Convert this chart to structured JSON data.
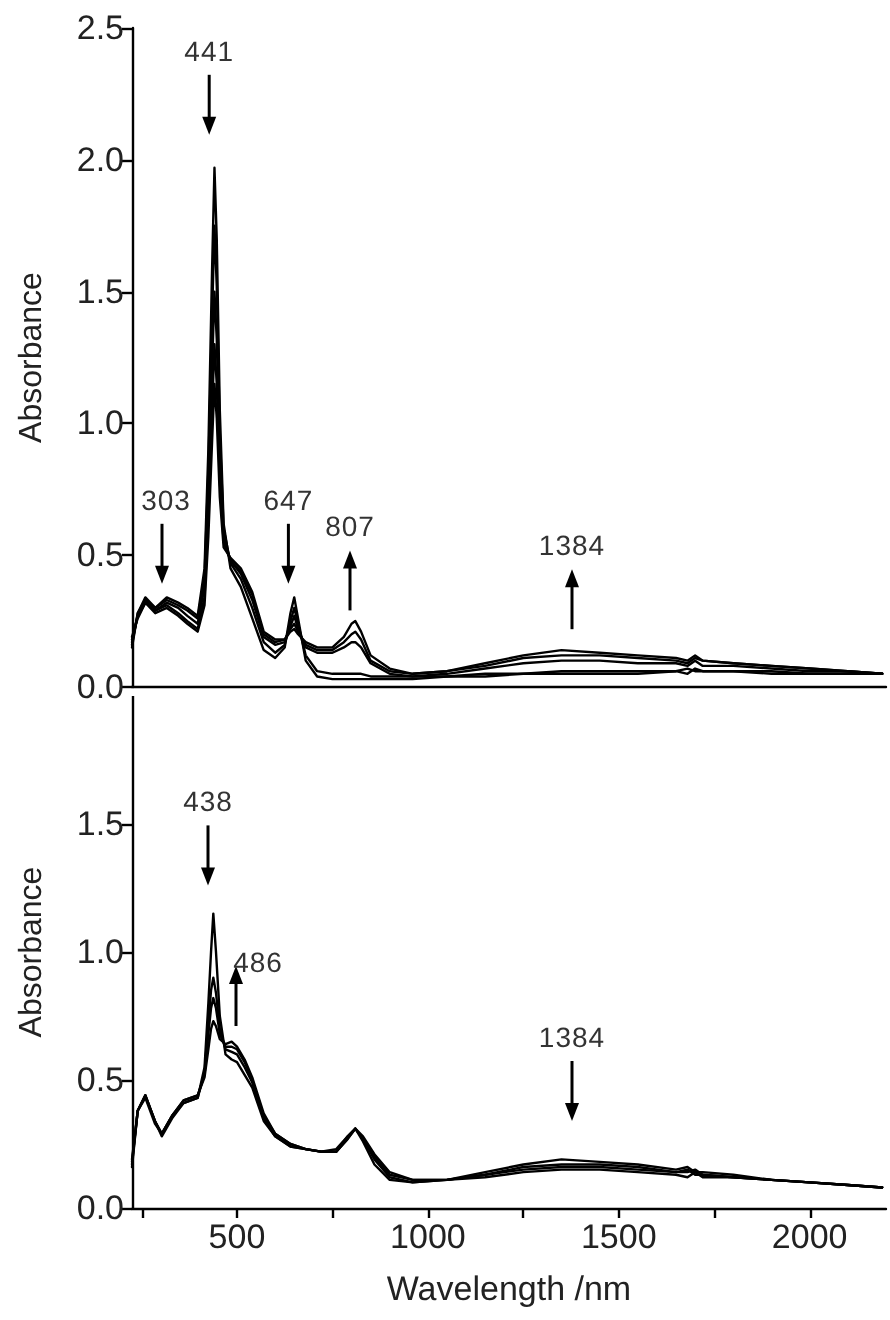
{
  "chart_data": [
    {
      "type": "line",
      "ylabel": "Absorbance",
      "x": [
        225,
        240,
        260,
        286,
        316,
        346,
        370,
        397,
        415,
        425,
        435,
        441,
        447,
        455,
        465,
        483,
        510,
        540,
        570,
        600,
        625,
        640,
        650,
        660,
        680,
        710,
        750,
        780,
        800,
        810,
        825,
        850,
        900,
        960,
        1050,
        1150,
        1250,
        1350,
        1450,
        1550,
        1650,
        1680,
        1700,
        1720,
        1800,
        1900,
        2000,
        2100,
        2190
      ],
      "series": [
        {
          "color": "#000000",
          "values": [
            0.15,
            0.28,
            0.34,
            0.3,
            0.34,
            0.32,
            0.3,
            0.27,
            0.45,
            0.9,
            1.6,
            1.97,
            1.7,
            1.05,
            0.62,
            0.45,
            0.38,
            0.26,
            0.14,
            0.11,
            0.15,
            0.28,
            0.34,
            0.26,
            0.1,
            0.04,
            0.03,
            0.03,
            0.03,
            0.03,
            0.03,
            0.03,
            0.03,
            0.03,
            0.04,
            0.04,
            0.05,
            0.05,
            0.05,
            0.05,
            0.06,
            0.05,
            0.07,
            0.06,
            0.06,
            0.05,
            0.05,
            0.05,
            0.05
          ]
        },
        {
          "color": "#000000",
          "values": [
            0.16,
            0.28,
            0.33,
            0.3,
            0.33,
            0.31,
            0.29,
            0.26,
            0.42,
            0.82,
            1.42,
            1.75,
            1.52,
            0.96,
            0.6,
            0.47,
            0.41,
            0.3,
            0.17,
            0.13,
            0.16,
            0.25,
            0.3,
            0.24,
            0.12,
            0.06,
            0.05,
            0.05,
            0.05,
            0.05,
            0.05,
            0.04,
            0.04,
            0.04,
            0.04,
            0.05,
            0.05,
            0.06,
            0.06,
            0.06,
            0.06,
            0.07,
            0.06,
            0.06,
            0.06,
            0.06,
            0.05,
            0.05,
            0.05
          ]
        },
        {
          "color": "#000000",
          "values": [
            0.17,
            0.27,
            0.33,
            0.29,
            0.32,
            0.3,
            0.27,
            0.24,
            0.38,
            0.72,
            1.22,
            1.5,
            1.32,
            0.86,
            0.57,
            0.48,
            0.43,
            0.33,
            0.19,
            0.16,
            0.17,
            0.23,
            0.27,
            0.22,
            0.15,
            0.13,
            0.13,
            0.15,
            0.17,
            0.17,
            0.15,
            0.09,
            0.05,
            0.04,
            0.05,
            0.07,
            0.09,
            0.1,
            0.1,
            0.09,
            0.09,
            0.08,
            0.1,
            0.08,
            0.08,
            0.07,
            0.06,
            0.06,
            0.05
          ]
        },
        {
          "color": "#000000",
          "values": [
            0.18,
            0.27,
            0.32,
            0.29,
            0.31,
            0.28,
            0.25,
            0.22,
            0.34,
            0.64,
            1.06,
            1.3,
            1.15,
            0.78,
            0.55,
            0.48,
            0.44,
            0.35,
            0.2,
            0.17,
            0.18,
            0.22,
            0.24,
            0.21,
            0.16,
            0.14,
            0.14,
            0.17,
            0.2,
            0.21,
            0.18,
            0.1,
            0.06,
            0.05,
            0.06,
            0.08,
            0.11,
            0.12,
            0.12,
            0.11,
            0.1,
            0.09,
            0.11,
            0.1,
            0.09,
            0.08,
            0.07,
            0.06,
            0.05
          ]
        },
        {
          "color": "#000000",
          "values": [
            0.19,
            0.26,
            0.32,
            0.28,
            0.3,
            0.27,
            0.24,
            0.21,
            0.31,
            0.57,
            0.94,
            1.15,
            1.02,
            0.72,
            0.53,
            0.49,
            0.45,
            0.36,
            0.21,
            0.18,
            0.18,
            0.21,
            0.22,
            0.2,
            0.17,
            0.15,
            0.15,
            0.19,
            0.24,
            0.25,
            0.21,
            0.12,
            0.07,
            0.05,
            0.06,
            0.09,
            0.12,
            0.14,
            0.13,
            0.12,
            0.11,
            0.1,
            0.12,
            0.1,
            0.09,
            0.08,
            0.07,
            0.06,
            0.05
          ]
        }
      ],
      "xlim": [
        225,
        2200
      ],
      "ylim": [
        0,
        2.5
      ],
      "yticks": [
        {
          "value": 0,
          "label": "0.0"
        },
        0.5,
        {
          "value": 1,
          "label": "1.0"
        },
        1.5,
        {
          "value": 2,
          "label": "2.0"
        },
        2.5
      ],
      "tick_labels": "y",
      "line_style": "solid",
      "annotations": [
        "441",
        "303",
        "647",
        "807",
        "1384"
      ]
    },
    {
      "type": "line",
      "xlabel": "Wavelength /nm",
      "ylabel": "Absorbance",
      "x": [
        225,
        240,
        260,
        285,
        303,
        330,
        360,
        397,
        415,
        425,
        432,
        438,
        445,
        455,
        470,
        486,
        500,
        520,
        540,
        570,
        600,
        640,
        680,
        720,
        760,
        790,
        810,
        830,
        860,
        900,
        960,
        1050,
        1150,
        1250,
        1350,
        1450,
        1550,
        1650,
        1680,
        1700,
        1720,
        1800,
        1900,
        2000,
        2100,
        2190
      ],
      "series": [
        {
          "color": "#000000",
          "values": [
            0.16,
            0.38,
            0.44,
            0.34,
            0.28,
            0.35,
            0.41,
            0.43,
            0.55,
            0.8,
            1.0,
            1.15,
            1.0,
            0.75,
            0.6,
            0.58,
            0.57,
            0.52,
            0.47,
            0.34,
            0.28,
            0.24,
            0.23,
            0.22,
            0.22,
            0.27,
            0.31,
            0.26,
            0.17,
            0.11,
            0.1,
            0.11,
            0.14,
            0.17,
            0.19,
            0.18,
            0.17,
            0.15,
            0.16,
            0.14,
            0.14,
            0.13,
            0.11,
            0.1,
            0.09,
            0.08
          ]
        },
        {
          "color": "#000000",
          "values": [
            0.17,
            0.38,
            0.44,
            0.34,
            0.29,
            0.36,
            0.41,
            0.43,
            0.53,
            0.72,
            0.85,
            0.9,
            0.84,
            0.7,
            0.62,
            0.61,
            0.6,
            0.55,
            0.49,
            0.35,
            0.28,
            0.24,
            0.23,
            0.22,
            0.22,
            0.27,
            0.31,
            0.27,
            0.19,
            0.12,
            0.1,
            0.11,
            0.13,
            0.16,
            0.17,
            0.17,
            0.16,
            0.14,
            0.14,
            0.15,
            0.13,
            0.12,
            0.11,
            0.1,
            0.09,
            0.08
          ]
        },
        {
          "color": "#000000",
          "values": [
            0.18,
            0.38,
            0.44,
            0.34,
            0.29,
            0.36,
            0.42,
            0.44,
            0.52,
            0.68,
            0.78,
            0.82,
            0.78,
            0.68,
            0.63,
            0.63,
            0.62,
            0.57,
            0.5,
            0.36,
            0.29,
            0.25,
            0.23,
            0.22,
            0.22,
            0.28,
            0.31,
            0.27,
            0.2,
            0.13,
            0.11,
            0.11,
            0.13,
            0.15,
            0.16,
            0.16,
            0.15,
            0.14,
            0.15,
            0.13,
            0.13,
            0.12,
            0.11,
            0.1,
            0.09,
            0.08
          ]
        },
        {
          "color": "#000000",
          "values": [
            0.19,
            0.38,
            0.43,
            0.33,
            0.29,
            0.36,
            0.42,
            0.44,
            0.51,
            0.62,
            0.7,
            0.73,
            0.71,
            0.66,
            0.64,
            0.65,
            0.63,
            0.58,
            0.51,
            0.37,
            0.29,
            0.25,
            0.23,
            0.22,
            0.23,
            0.28,
            0.31,
            0.28,
            0.21,
            0.14,
            0.11,
            0.11,
            0.12,
            0.14,
            0.15,
            0.15,
            0.14,
            0.13,
            0.12,
            0.14,
            0.12,
            0.12,
            0.11,
            0.1,
            0.09,
            0.08
          ]
        }
      ],
      "xlim": [
        225,
        2200
      ],
      "xticks": [
        {
          "value": 250,
          "label": null
        },
        500,
        {
          "value": 750,
          "label": null
        },
        1000,
        {
          "value": 1250,
          "label": null
        },
        1500,
        {
          "value": 1750,
          "label": null
        },
        2000
      ],
      "ylim": [
        0,
        2.0
      ],
      "yticks": [
        {
          "value": 0,
          "label": "0.0"
        },
        0.5,
        {
          "value": 1,
          "label": "1.0"
        },
        1.5
      ],
      "line_style": "solid",
      "annotations": [
        "438",
        "486",
        "1384"
      ]
    }
  ]
}
